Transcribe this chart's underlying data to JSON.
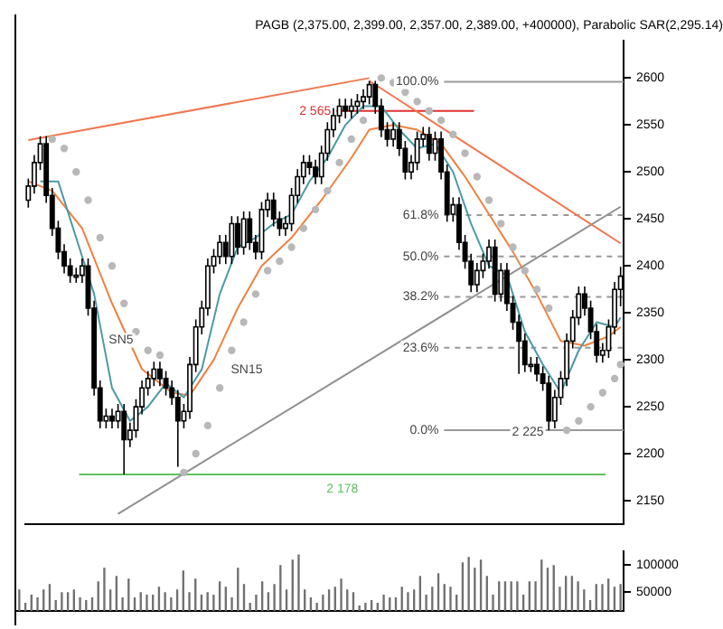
{
  "chart_data": [
    {
      "type": "candlestick",
      "title": "PAGB (2,375.00, 2,399.00, 2,357.00, 2,389.00, +400000), Parabolic SAR(2,295.14)",
      "color": "#000000",
      "colors": [
        "#ffffff",
        "#ffffff",
        "#ffffff",
        "#000000",
        "#000000",
        "#000000",
        "#000000",
        "#000000",
        "#ffffff",
        "#ffffff",
        "#000000",
        "#000000",
        "#000000",
        "#ffffff",
        "#000000",
        "#ffffff",
        "#000000",
        "#ffffff",
        "#ffffff",
        "#ffffff",
        "#ffffff",
        "#ffffff",
        "#000000",
        "#000000",
        "#000000",
        "#000000",
        "#ffffff",
        "#ffffff",
        "#ffffff",
        "#ffffff",
        "#ffffff",
        "#ffffff",
        "#ffffff",
        "#000000",
        "#ffffff",
        "#000000",
        "#ffffff",
        "#000000",
        "#000000",
        "#ffffff",
        "#ffffff",
        "#000000",
        "#000000",
        "#ffffff",
        "#ffffff",
        "#ffffff",
        "#ffffff",
        "#000000",
        "#000000",
        "#ffffff",
        "#ffffff",
        "#ffffff",
        "#ffffff",
        "#000000",
        "#ffffff",
        "#ffffff",
        "#ffffff",
        "#ffffff",
        "#000000",
        "#000000",
        "#000000",
        "#ffffff",
        "#000000",
        "#000000",
        "#ffffff",
        "#ffffff",
        "#ffffff",
        "#000000",
        "#ffffff",
        "#000000",
        "#000000",
        "#ffffff",
        "#000000",
        "#000000",
        "#000000",
        "#ffffff",
        "#ffffff",
        "#ffffff",
        "#000000",
        "#ffffff",
        "#000000",
        "#000000",
        "#000000",
        "#000000",
        "#ffffff",
        "#000000",
        "#000000",
        "#000000",
        "#ffffff",
        "#ffffff",
        "#ffffff",
        "#ffffff",
        "#ffffff",
        "#000000",
        "#000000",
        "#000000",
        "#ffffff",
        "#ffffff",
        "#ffffff",
        "#ffffff"
      ],
      "tick_labels": "y",
      "ylim": [
        2125,
        2640
      ],
      "yticks": [
        2150,
        2200,
        2250,
        2300,
        2350,
        2400,
        2450,
        2500,
        2550,
        2600
      ],
      "categories": [
        null,
        null,
        null,
        null,
        null,
        null,
        null,
        null,
        null,
        null,
        null,
        null,
        null,
        null,
        null,
        null,
        null,
        null,
        null,
        null,
        null,
        null,
        null,
        null,
        null,
        null,
        null,
        null,
        null,
        null,
        null,
        null,
        null,
        null,
        null,
        null,
        null,
        null,
        null,
        null,
        null,
        null,
        null,
        null,
        null,
        null,
        null,
        null,
        null,
        null,
        null,
        null,
        null,
        null,
        null,
        null,
        null,
        null,
        null,
        null,
        null,
        null,
        null,
        null,
        null,
        null,
        null,
        null,
        null,
        null,
        null,
        null,
        null,
        null,
        null,
        null,
        null,
        null,
        null,
        null,
        null,
        null,
        null,
        null,
        null,
        null,
        null,
        null,
        null,
        null,
        null,
        null,
        null,
        null,
        null,
        null,
        null,
        null,
        null,
        null
      ],
      "ohlc": [
        [
          2470,
          2493,
          2462,
          2485
        ],
        [
          2485,
          2518,
          2477,
          2510
        ],
        [
          2510,
          2538,
          2502,
          2530
        ],
        [
          2530,
          2538,
          2467,
          2475
        ],
        [
          2475,
          2483,
          2432,
          2440
        ],
        [
          2440,
          2448,
          2407,
          2415
        ],
        [
          2415,
          2423,
          2392,
          2400
        ],
        [
          2400,
          2408,
          2382,
          2390
        ],
        [
          2390,
          2398,
          2382,
          2390
        ],
        [
          2390,
          2408,
          2382,
          2400
        ],
        [
          2400,
          2408,
          2347,
          2355
        ],
        [
          2355,
          2363,
          2262,
          2270
        ],
        [
          2270,
          2278,
          2227,
          2235
        ],
        [
          2235,
          2248,
          2227,
          2240
        ],
        [
          2240,
          2248,
          2227,
          2235
        ],
        [
          2235,
          2253,
          2227,
          2245
        ],
        [
          2245,
          2253,
          2178,
          2215
        ],
        [
          2215,
          2233,
          2207,
          2225
        ],
        [
          2225,
          2258,
          2217,
          2250
        ],
        [
          2250,
          2278,
          2242,
          2270
        ],
        [
          2270,
          2288,
          2262,
          2280
        ],
        [
          2280,
          2298,
          2272,
          2290
        ],
        [
          2290,
          2298,
          2272,
          2280
        ],
        [
          2280,
          2288,
          2262,
          2270
        ],
        [
          2270,
          2278,
          2252,
          2260
        ],
        [
          2260,
          2268,
          2186,
          2235
        ],
        [
          2235,
          2253,
          2227,
          2245
        ],
        [
          2245,
          2303,
          2237,
          2295
        ],
        [
          2295,
          2343,
          2287,
          2335
        ],
        [
          2335,
          2363,
          2327,
          2355
        ],
        [
          2355,
          2408,
          2347,
          2400
        ],
        [
          2400,
          2418,
          2392,
          2410
        ],
        [
          2410,
          2433,
          2402,
          2425
        ],
        [
          2425,
          2433,
          2402,
          2410
        ],
        [
          2410,
          2453,
          2402,
          2445
        ],
        [
          2445,
          2453,
          2412,
          2420
        ],
        [
          2420,
          2458,
          2412,
          2450
        ],
        [
          2450,
          2458,
          2417,
          2425
        ],
        [
          2425,
          2433,
          2407,
          2415
        ],
        [
          2415,
          2468,
          2407,
          2460
        ],
        [
          2460,
          2478,
          2452,
          2470
        ],
        [
          2470,
          2478,
          2442,
          2450
        ],
        [
          2450,
          2458,
          2432,
          2440
        ],
        [
          2440,
          2453,
          2432,
          2445
        ],
        [
          2445,
          2483,
          2437,
          2475
        ],
        [
          2475,
          2503,
          2467,
          2495
        ],
        [
          2495,
          2518,
          2487,
          2510
        ],
        [
          2510,
          2518,
          2497,
          2505
        ],
        [
          2505,
          2513,
          2487,
          2495
        ],
        [
          2495,
          2528,
          2487,
          2520
        ],
        [
          2520,
          2553,
          2512,
          2545
        ],
        [
          2545,
          2568,
          2537,
          2560
        ],
        [
          2560,
          2578,
          2552,
          2570
        ],
        [
          2570,
          2578,
          2557,
          2565
        ],
        [
          2565,
          2578,
          2557,
          2570
        ],
        [
          2570,
          2583,
          2562,
          2575
        ],
        [
          2575,
          2588,
          2567,
          2580
        ],
        [
          2580,
          2597,
          2572,
          2593
        ],
        [
          2593,
          2597,
          2562,
          2570
        ],
        [
          2570,
          2578,
          2537,
          2545
        ],
        [
          2545,
          2553,
          2527,
          2535
        ],
        [
          2535,
          2553,
          2527,
          2545
        ],
        [
          2545,
          2553,
          2517,
          2525
        ],
        [
          2525,
          2533,
          2492,
          2500
        ],
        [
          2500,
          2518,
          2492,
          2510
        ],
        [
          2510,
          2543,
          2502,
          2535
        ],
        [
          2535,
          2548,
          2527,
          2540
        ],
        [
          2540,
          2548,
          2512,
          2520
        ],
        [
          2520,
          2543,
          2512,
          2535
        ],
        [
          2535,
          2543,
          2492,
          2500
        ],
        [
          2500,
          2508,
          2447,
          2455
        ],
        [
          2455,
          2473,
          2447,
          2465
        ],
        [
          2465,
          2473,
          2417,
          2425
        ],
        [
          2425,
          2433,
          2397,
          2405
        ],
        [
          2405,
          2413,
          2372,
          2380
        ],
        [
          2380,
          2403,
          2372,
          2395
        ],
        [
          2395,
          2413,
          2387,
          2405
        ],
        [
          2405,
          2428,
          2397,
          2420
        ],
        [
          2420,
          2428,
          2362,
          2370
        ],
        [
          2370,
          2403,
          2362,
          2395
        ],
        [
          2395,
          2403,
          2352,
          2360
        ],
        [
          2360,
          2368,
          2332,
          2340
        ],
        [
          2340,
          2348,
          2285,
          2320
        ],
        [
          2320,
          2328,
          2287,
          2295
        ],
        [
          2295,
          2303,
          2287,
          2295
        ],
        [
          2295,
          2303,
          2277,
          2285
        ],
        [
          2285,
          2293,
          2267,
          2275
        ],
        [
          2275,
          2283,
          2225,
          2235
        ],
        [
          2235,
          2268,
          2227,
          2260
        ],
        [
          2260,
          2288,
          2252,
          2280
        ],
        [
          2280,
          2328,
          2272,
          2320
        ],
        [
          2320,
          2353,
          2312,
          2345
        ],
        [
          2345,
          2378,
          2337,
          2370
        ],
        [
          2370,
          2378,
          2347,
          2355
        ],
        [
          2355,
          2363,
          2322,
          2330
        ],
        [
          2330,
          2338,
          2297,
          2305
        ],
        [
          2305,
          2318,
          2297,
          2310
        ],
        [
          2310,
          2343,
          2302,
          2335
        ],
        [
          2335,
          2383,
          2327,
          2375
        ],
        [
          2375,
          2399,
          2357,
          2389
        ]
      ],
      "series": [
        {
          "type": "line",
          "color": "#4a9aa5",
          "values": [
            null,
            null,
            2490,
            null,
            null,
            2490,
            null,
            null,
            2430,
            null,
            null,
            2370,
            null,
            null,
            2270,
            null,
            null,
            2235,
            null,
            null,
            2250,
            null,
            null,
            2275,
            null,
            null,
            2260,
            null,
            null,
            2290,
            null,
            null,
            2370,
            null,
            null,
            2420,
            null,
            null,
            2430,
            null,
            null,
            2445,
            null,
            null,
            2455,
            null,
            null,
            2490,
            null,
            null,
            2515,
            null,
            null,
            2550,
            null,
            null,
            2570,
            null,
            null,
            2570,
            null,
            null,
            2545,
            null,
            null,
            2525,
            null,
            null,
            2530,
            null,
            null,
            2500,
            null,
            null,
            2445,
            null,
            null,
            2400,
            null,
            null,
            2390,
            null,
            null,
            2330,
            null,
            null,
            2295,
            null,
            null,
            2265,
            null,
            null,
            2310,
            null,
            null,
            2340,
            null,
            null,
            2335,
            2345
          ]
        },
        {
          "type": "line",
          "color": "#f08040",
          "values": [
            2490,
            null,
            null,
            null,
            2480,
            null,
            null,
            null,
            null,
            2440,
            null,
            null,
            null,
            null,
            2360,
            null,
            null,
            null,
            null,
            2290,
            null,
            null,
            null,
            null,
            2265,
            null,
            null,
            2262,
            null,
            null,
            null,
            2300,
            null,
            null,
            null,
            2355,
            null,
            null,
            null,
            2400,
            null,
            null,
            null,
            null,
            2430,
            null,
            null,
            null,
            null,
            2470,
            null,
            null,
            null,
            null,
            2515,
            null,
            null,
            2545,
            null,
            null,
            null,
            2550,
            null,
            null,
            null,
            2545,
            null,
            null,
            null,
            2530,
            null,
            null,
            null,
            2495,
            null,
            null,
            null,
            2455,
            null,
            null,
            null,
            2415,
            null,
            null,
            null,
            2370,
            null,
            null,
            null,
            2320,
            null,
            null,
            null,
            2315,
            null,
            null,
            null,
            2325,
            null,
            2335
          ]
        },
        {
          "type": "scatter",
          "color": "#b8b8b8",
          "marker": "circle",
          "values": [
            null,
            null,
            null,
            null,
            2535,
            null,
            2525,
            null,
            2500,
            null,
            2470,
            null,
            2430,
            null,
            2400,
            null,
            2360,
            null,
            2330,
            null,
            2310,
            null,
            2305,
            null,
            null,
            null,
            2180,
            null,
            2200,
            null,
            2230,
            null,
            2270,
            null,
            2310,
            null,
            2340,
            null,
            2370,
            null,
            2395,
            null,
            2405,
            null,
            2420,
            null,
            2440,
            null,
            2460,
            null,
            2480,
            null,
            2510,
            null,
            2535,
            null,
            2555,
            null,
            null,
            2600,
            null,
            2595,
            null,
            2585,
            null,
            2575,
            null,
            2565,
            null,
            2555,
            null,
            2540,
            null,
            2520,
            null,
            2495,
            null,
            2470,
            null,
            2445,
            null,
            2420,
            null,
            2395,
            null,
            2375,
            null,
            2355,
            null,
            null,
            2225,
            null,
            2235,
            null,
            2250,
            null,
            2265,
            null,
            2280,
            2295
          ]
        },
        {
          "type": "line",
          "color": "#f07850",
          "values": [
            2534,
            null,
            null,
            null,
            null,
            null,
            null,
            null,
            null,
            null,
            null,
            null,
            null,
            null,
            null,
            null,
            null,
            null,
            null,
            null,
            null,
            null,
            null,
            null,
            null,
            null,
            null,
            null,
            null,
            null,
            null,
            null,
            null,
            null,
            null,
            null,
            null,
            null,
            null,
            null,
            null,
            null,
            null,
            null,
            null,
            null,
            null,
            null,
            null,
            null,
            null,
            null,
            null,
            null,
            null,
            null,
            null,
            2600,
            null,
            null,
            null,
            null,
            null,
            null,
            null,
            null,
            null,
            null,
            null,
            null,
            null,
            null,
            null,
            null,
            null,
            null,
            null,
            null,
            null,
            null,
            null,
            null,
            null,
            null,
            null,
            null,
            null,
            null,
            null,
            null,
            null,
            null,
            null,
            null,
            null,
            null,
            null,
            null,
            null,
            null
          ]
        },
        {
          "type": "line",
          "color": "#f07850",
          "values": [
            null,
            null,
            null,
            null,
            null,
            null,
            null,
            null,
            null,
            null,
            null,
            null,
            null,
            null,
            null,
            null,
            null,
            null,
            null,
            null,
            null,
            null,
            null,
            null,
            null,
            null,
            null,
            null,
            null,
            null,
            null,
            null,
            null,
            null,
            null,
            null,
            null,
            null,
            null,
            null,
            null,
            null,
            null,
            null,
            null,
            null,
            null,
            null,
            null,
            null,
            null,
            null,
            null,
            null,
            null,
            null,
            null,
            2597,
            null,
            null,
            null,
            null,
            null,
            null,
            null,
            null,
            null,
            null,
            null,
            null,
            null,
            null,
            null,
            null,
            null,
            null,
            null,
            null,
            null,
            null,
            null,
            null,
            null,
            null,
            null,
            null,
            null,
            null,
            null,
            null,
            null,
            null,
            null,
            null,
            null,
            null,
            null,
            null,
            null,
            2424
          ]
        },
        {
          "type": "line",
          "color": "#909090",
          "values": [
            null,
            null,
            null,
            null,
            null,
            null,
            null,
            null,
            null,
            null,
            null,
            null,
            null,
            null,
            null,
            2136,
            null,
            null,
            null,
            null,
            null,
            null,
            null,
            null,
            null,
            null,
            null,
            null,
            null,
            null,
            null,
            null,
            null,
            null,
            null,
            null,
            null,
            null,
            null,
            null,
            null,
            null,
            null,
            null,
            null,
            null,
            null,
            null,
            null,
            null,
            null,
            null,
            null,
            null,
            null,
            null,
            null,
            null,
            null,
            null,
            null,
            null,
            null,
            null,
            null,
            null,
            null,
            null,
            null,
            null,
            null,
            null,
            null,
            null,
            null,
            null,
            null,
            null,
            null,
            null,
            null,
            null,
            null,
            null,
            null,
            null,
            null,
            null,
            null,
            null,
            null,
            null,
            null,
            null,
            null,
            null,
            null,
            null,
            null,
            2463
          ]
        }
      ],
      "ref_lines": [
        {
          "axis": "y",
          "value": 2596,
          "color": "#999999"
        },
        {
          "axis": "y",
          "value": 2454,
          "color": "#999999",
          "line_style": "dashed"
        },
        {
          "axis": "y",
          "value": 2410,
          "color": "#999999",
          "line_style": "dashed"
        },
        {
          "axis": "y",
          "value": 2367,
          "color": "#999999",
          "line_style": "dashed"
        },
        {
          "axis": "y",
          "value": 2313,
          "color": "#999999",
          "line_style": "dashed"
        },
        {
          "axis": "y",
          "value": 2225,
          "color": "#999999"
        },
        {
          "axis": "y",
          "value": 2565,
          "label": "2 565",
          "color": "#e03030"
        },
        {
          "axis": "y",
          "value": 2178,
          "label": "2 178",
          "color": "#60c060"
        }
      ],
      "annotations": [
        "100.0%",
        "61.8%",
        "50.0%",
        "38.2%",
        "23.6%",
        "0.0%",
        "SN5",
        "SN15",
        "2 225"
      ]
    },
    {
      "type": "bar",
      "color": "#707070",
      "tick_labels": "y",
      "ylim": [
        15000,
        125000
      ],
      "yticks": [
        50000,
        100000
      ],
      "categories": [
        null,
        null,
        null,
        null,
        null,
        null,
        null,
        null,
        null,
        null,
        null,
        null,
        null,
        null,
        null,
        null,
        null,
        null,
        null,
        null,
        null,
        null,
        null,
        null,
        null,
        null,
        null,
        null,
        null,
        null,
        null,
        null,
        null,
        null,
        null,
        null,
        null,
        null,
        null,
        null,
        null,
        null,
        null,
        null,
        null,
        null,
        null,
        null,
        null,
        null,
        null,
        null,
        null,
        null,
        null,
        null,
        null,
        null,
        null,
        null,
        null,
        null,
        null,
        null,
        null,
        null,
        null,
        null,
        null,
        null,
        null,
        null,
        null,
        null,
        null,
        null,
        null,
        null,
        null,
        null,
        null,
        null,
        null,
        null,
        null,
        null,
        null,
        null,
        null,
        null,
        null,
        null,
        null,
        null,
        null,
        null,
        null,
        null,
        null,
        null
      ],
      "values": [
        55000,
        30000,
        45000,
        40000,
        55000,
        65000,
        35000,
        50000,
        50000,
        55000,
        40000,
        35000,
        40000,
        70000,
        95000,
        55000,
        80000,
        40000,
        75000,
        40000,
        50000,
        45000,
        45000,
        60000,
        50000,
        40000,
        55000,
        90000,
        50000,
        75000,
        45000,
        50000,
        45000,
        70000,
        60000,
        40000,
        95000,
        65000,
        30000,
        45000,
        70000,
        50000,
        65000,
        100000,
        55000,
        110000,
        120000,
        55000,
        40000,
        30000,
        45000,
        55000,
        60000,
        75000,
        55000,
        50000,
        25000,
        30000,
        35000,
        30000,
        45000,
        40000,
        40000,
        60000,
        50000,
        55000,
        80000,
        45000,
        60000,
        85000,
        65000,
        60000,
        45000,
        105000,
        115000,
        95000,
        110000,
        80000,
        45000,
        70000,
        70000,
        70000,
        70000,
        45000,
        70000,
        70000,
        110000,
        95000,
        100000,
        60000,
        80000,
        80000,
        70000,
        55000,
        35000,
        65000,
        65000,
        75000,
        60000,
        65000
      ]
    }
  ]
}
